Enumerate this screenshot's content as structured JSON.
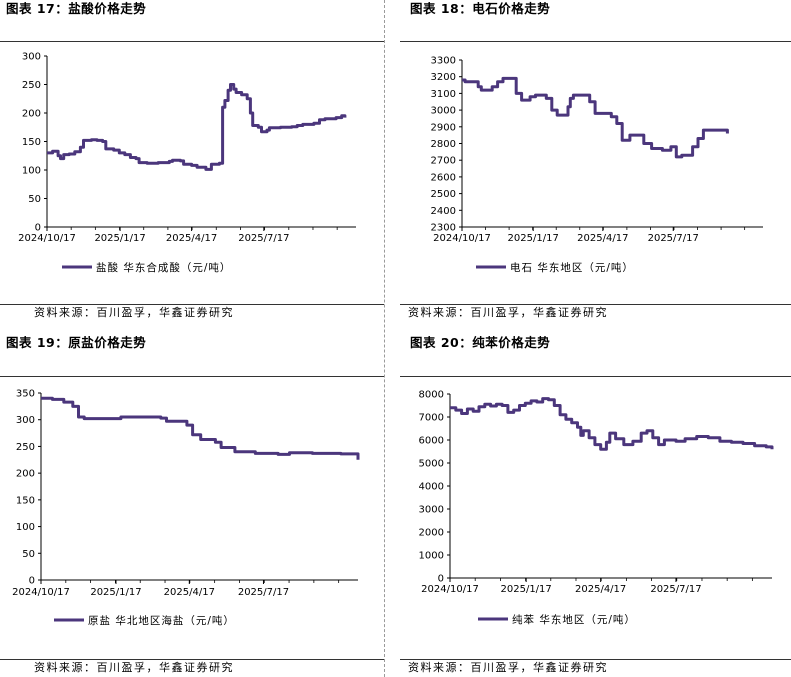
{
  "line_color": "#4b367c",
  "panels": [
    {
      "title": "图表 17：盐酸价格走势",
      "legend": "盐酸 华东合成酸（元/吨）",
      "source": "资料来源：百川盈孚，华鑫证券研究"
    },
    {
      "title": "图表 18：电石价格走势",
      "legend": "电石 华东地区（元/吨）",
      "source": "资料来源：百川盈孚，华鑫证券研究"
    },
    {
      "title": "图表 19：原盐价格走势",
      "legend": "原盐 华北地区海盐（元/吨）",
      "source": "资料来源：百川盈孚，华鑫证券研究"
    },
    {
      "title": "图表 20：纯苯价格走势",
      "legend": "纯苯 华东地区（元/吨）",
      "source": "资料来源：百川盈孚，华鑫证券研究"
    }
  ],
  "chart_data": [
    {
      "type": "line",
      "title": "图表 17：盐酸价格走势",
      "series_name": "盐酸 华东合成酸（元/吨）",
      "x_ticks": [
        "2024/10/17",
        "2025/1/17",
        "2025/4/17",
        "2025/7/17"
      ],
      "y_ticks": [
        0,
        50,
        100,
        150,
        200,
        250,
        300
      ],
      "ylim": [
        0,
        300
      ],
      "xlim": [
        "2024/10/17",
        "2025/11/10"
      ],
      "points": [
        [
          "2024/10/17",
          130
        ],
        [
          "2024/10/24",
          133
        ],
        [
          "2024/10/31",
          125
        ],
        [
          "2024/11/3",
          120
        ],
        [
          "2024/11/7",
          127
        ],
        [
          "2024/11/14",
          128
        ],
        [
          "2024/11/21",
          132
        ],
        [
          "2024/11/28",
          140
        ],
        [
          "2024/12/2",
          152
        ],
        [
          "2024/12/12",
          153
        ],
        [
          "2024/12/19",
          152
        ],
        [
          "2024/12/26",
          150
        ],
        [
          "2024/12/30",
          137
        ],
        [
          "2025/1/9",
          135
        ],
        [
          "2025/1/16",
          130
        ],
        [
          "2025/1/23",
          127
        ],
        [
          "2025/1/30",
          122
        ],
        [
          "2025/2/6",
          120
        ],
        [
          "2025/2/10",
          113
        ],
        [
          "2025/2/20",
          112
        ],
        [
          "2025/3/6",
          113
        ],
        [
          "2025/3/20",
          115
        ],
        [
          "2025/3/24",
          117
        ],
        [
          "2025/4/3",
          116
        ],
        [
          "2025/4/7",
          110
        ],
        [
          "2025/4/17",
          108
        ],
        [
          "2025/4/24",
          105
        ],
        [
          "2025/5/1",
          105
        ],
        [
          "2025/5/5",
          101
        ],
        [
          "2025/5/12",
          110
        ],
        [
          "2025/5/22",
          112
        ],
        [
          "2025/5/26",
          210
        ],
        [
          "2025/5/29",
          222
        ],
        [
          "2025/6/2",
          240
        ],
        [
          "2025/6/5",
          250
        ],
        [
          "2025/6/9",
          242
        ],
        [
          "2025/6/12",
          236
        ],
        [
          "2025/6/19",
          232
        ],
        [
          "2025/6/26",
          225
        ],
        [
          "2025/6/30",
          200
        ],
        [
          "2025/7/3",
          178
        ],
        [
          "2025/7/10",
          175
        ],
        [
          "2025/7/14",
          167
        ],
        [
          "2025/7/21",
          170
        ],
        [
          "2025/7/24",
          174
        ],
        [
          "2025/8/7",
          175
        ],
        [
          "2025/8/21",
          176
        ],
        [
          "2025/8/28",
          178
        ],
        [
          "2025/9/4",
          180
        ],
        [
          "2025/9/18",
          182
        ],
        [
          "2025/9/25",
          188
        ],
        [
          "2025/10/2",
          190
        ],
        [
          "2025/10/16",
          192
        ],
        [
          "2025/10/23",
          195
        ],
        [
          "2025/10/27",
          192
        ]
      ]
    },
    {
      "type": "line",
      "title": "图表 18：电石价格走势",
      "series_name": "电石 华东地区（元/吨）",
      "x_ticks": [
        "2024/10/17",
        "2025/1/17",
        "2025/4/17",
        "2025/7/17"
      ],
      "y_ticks": [
        2300,
        2400,
        2500,
        2600,
        2700,
        2800,
        2900,
        3000,
        3100,
        3200,
        3300
      ],
      "ylim": [
        2300,
        3300
      ],
      "xlim": [
        "2024/10/17",
        "2025/11/10"
      ],
      "points": [
        [
          "2024/10/17",
          3180
        ],
        [
          "2024/10/21",
          3170
        ],
        [
          "2024/11/7",
          3140
        ],
        [
          "2024/11/11",
          3120
        ],
        [
          "2024/11/25",
          3140
        ],
        [
          "2024/12/2",
          3170
        ],
        [
          "2024/12/9",
          3190
        ],
        [
          "2024/12/26",
          3100
        ],
        [
          "2025/1/2",
          3060
        ],
        [
          "2025/1/13",
          3080
        ],
        [
          "2025/1/20",
          3090
        ],
        [
          "2025/2/3",
          3070
        ],
        [
          "2025/2/10",
          3000
        ],
        [
          "2025/2/17",
          2970
        ],
        [
          "2025/3/3",
          3020
        ],
        [
          "2025/3/6",
          3070
        ],
        [
          "2025/3/10",
          3090
        ],
        [
          "2025/3/31",
          3050
        ],
        [
          "2025/4/7",
          2980
        ],
        [
          "2025/4/28",
          2960
        ],
        [
          "2025/5/5",
          2920
        ],
        [
          "2025/5/12",
          2820
        ],
        [
          "2025/5/22",
          2850
        ],
        [
          "2025/6/9",
          2800
        ],
        [
          "2025/6/19",
          2770
        ],
        [
          "2025/7/3",
          2760
        ],
        [
          "2025/7/14",
          2780
        ],
        [
          "2025/7/21",
          2720
        ],
        [
          "2025/7/28",
          2730
        ],
        [
          "2025/8/11",
          2780
        ],
        [
          "2025/8/18",
          2830
        ],
        [
          "2025/8/25",
          2880
        ],
        [
          "2025/9/18",
          2880
        ],
        [
          "2025/9/25",
          2860
        ]
      ]
    },
    {
      "type": "line",
      "title": "图表 19：原盐价格走势",
      "series_name": "原盐 华北地区海盐（元/吨）",
      "x_ticks": [
        "2024/10/17",
        "2025/1/17",
        "2025/4/17",
        "2025/7/17"
      ],
      "y_ticks": [
        0,
        50,
        100,
        150,
        200,
        250,
        300,
        350
      ],
      "ylim": [
        0,
        350
      ],
      "xlim": [
        "2024/10/17",
        "2025/11/10"
      ],
      "points": [
        [
          "2024/10/17",
          340
        ],
        [
          "2024/10/31",
          338
        ],
        [
          "2024/11/14",
          333
        ],
        [
          "2024/11/25",
          325
        ],
        [
          "2024/12/2",
          305
        ],
        [
          "2024/12/9",
          302
        ],
        [
          "2025/1/9",
          302
        ],
        [
          "2025/1/23",
          305
        ],
        [
          "2025/3/13",
          303
        ],
        [
          "2025/3/20",
          297
        ],
        [
          "2025/4/14",
          290
        ],
        [
          "2025/4/21",
          272
        ],
        [
          "2025/5/1",
          263
        ],
        [
          "2025/5/19",
          258
        ],
        [
          "2025/5/26",
          248
        ],
        [
          "2025/6/12",
          240
        ],
        [
          "2025/7/7",
          237
        ],
        [
          "2025/8/4",
          235
        ],
        [
          "2025/8/18",
          238
        ],
        [
          "2025/9/15",
          237
        ],
        [
          "2025/10/20",
          236
        ],
        [
          "2025/11/3",
          236
        ],
        [
          "2025/11/10",
          225
        ]
      ]
    },
    {
      "type": "line",
      "title": "图表 20：纯苯价格走势",
      "series_name": "纯苯 华东地区（元/吨）",
      "x_ticks": [
        "2024/10/17",
        "2025/1/17",
        "2025/4/17",
        "2025/7/17"
      ],
      "y_ticks": [
        0,
        1000,
        2000,
        3000,
        4000,
        5000,
        6000,
        7000,
        8000
      ],
      "ylim": [
        0,
        8000
      ],
      "xlim": [
        "2024/10/17",
        "2025/11/10"
      ],
      "points": [
        [
          "2024/10/17",
          7400
        ],
        [
          "2024/10/24",
          7300
        ],
        [
          "2024/10/31",
          7150
        ],
        [
          "2024/11/7",
          7350
        ],
        [
          "2024/11/14",
          7250
        ],
        [
          "2024/11/21",
          7450
        ],
        [
          "2024/11/28",
          7550
        ],
        [
          "2024/12/5",
          7480
        ],
        [
          "2024/12/12",
          7550
        ],
        [
          "2024/12/19",
          7500
        ],
        [
          "2024/12/26",
          7200
        ],
        [
          "2025/1/2",
          7300
        ],
        [
          "2025/1/9",
          7500
        ],
        [
          "2025/1/16",
          7600
        ],
        [
          "2025/1/23",
          7700
        ],
        [
          "2025/1/30",
          7650
        ],
        [
          "2025/2/6",
          7800
        ],
        [
          "2025/2/13",
          7750
        ],
        [
          "2025/2/20",
          7500
        ],
        [
          "2025/2/27",
          7100
        ],
        [
          "2025/3/6",
          6900
        ],
        [
          "2025/3/13",
          6750
        ],
        [
          "2025/3/20",
          6550
        ],
        [
          "2025/3/24",
          6200
        ],
        [
          "2025/3/27",
          6400
        ],
        [
          "2025/4/3",
          6100
        ],
        [
          "2025/4/10",
          5800
        ],
        [
          "2025/4/17",
          5600
        ],
        [
          "2025/4/24",
          5900
        ],
        [
          "2025/4/28",
          6300
        ],
        [
          "2025/5/5",
          6050
        ],
        [
          "2025/5/15",
          5800
        ],
        [
          "2025/5/26",
          5950
        ],
        [
          "2025/6/5",
          6300
        ],
        [
          "2025/6/12",
          6400
        ],
        [
          "2025/6/19",
          6100
        ],
        [
          "2025/6/26",
          5800
        ],
        [
          "2025/7/3",
          6000
        ],
        [
          "2025/7/17",
          5950
        ],
        [
          "2025/7/28",
          6050
        ],
        [
          "2025/8/11",
          6150
        ],
        [
          "2025/8/25",
          6100
        ],
        [
          "2025/9/8",
          5950
        ],
        [
          "2025/9/22",
          5900
        ],
        [
          "2025/10/6",
          5850
        ],
        [
          "2025/10/20",
          5750
        ],
        [
          "2025/11/3",
          5700
        ],
        [
          "2025/11/10",
          5600
        ]
      ]
    }
  ]
}
